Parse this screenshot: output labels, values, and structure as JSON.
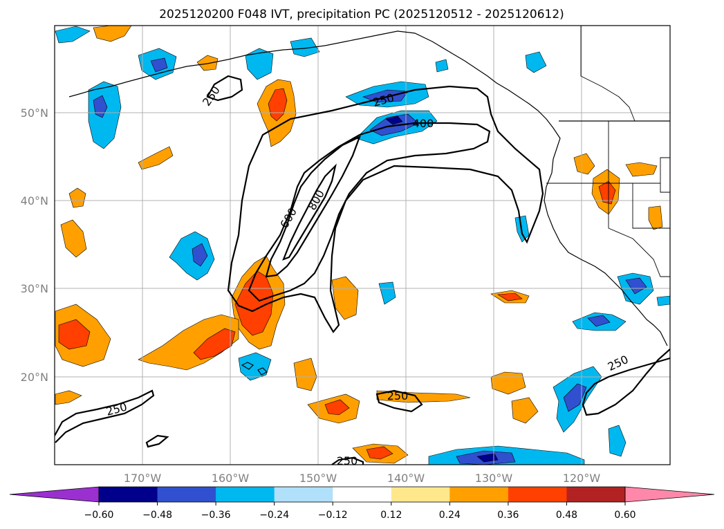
{
  "title": "2025120200 F048 IVT, precipitation PC (2025120512 - 2025120612)",
  "map": {
    "lat_labels": [
      "50°N",
      "40°N",
      "30°N",
      "20°N"
    ],
    "lon_labels": [
      "170°W",
      "160°W",
      "150°W",
      "140°W",
      "130°W",
      "120°W"
    ],
    "grid": true
  },
  "ivt_contours": {
    "levels": [
      250,
      400,
      600,
      800
    ],
    "labels": [
      "250",
      "250",
      "400",
      "600",
      "800",
      "250",
      "250",
      "250",
      "250"
    ]
  },
  "colorbar": {
    "ticks": [
      "−0.60",
      "−0.48",
      "−0.36",
      "−0.24",
      "−0.12",
      "0.12",
      "0.24",
      "0.36",
      "0.48",
      "0.60"
    ],
    "colors": [
      "#9b30d0",
      "#00008b",
      "#3050d0",
      "#00b8f0",
      "#b0e0fa",
      "#ffffff",
      "#ffe88c",
      "#ffa000",
      "#ff4000",
      "#b22222",
      "#ff88aa"
    ]
  }
}
